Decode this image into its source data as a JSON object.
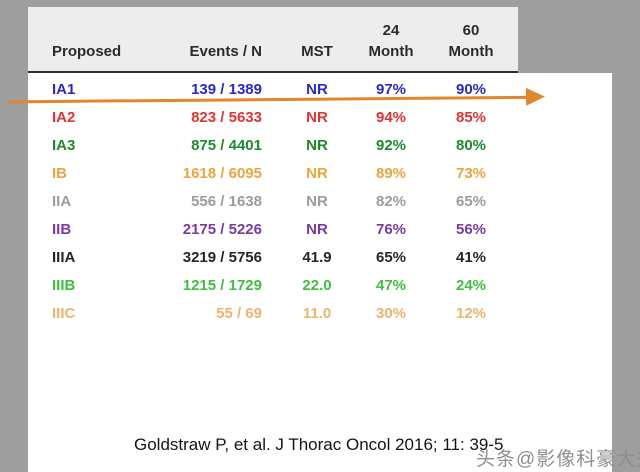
{
  "chart_data": {
    "type": "table",
    "columns": [
      "Proposed",
      "Events / N",
      "MST",
      "24 Month",
      "60 Month"
    ],
    "rows": [
      {
        "stage": "IA1",
        "events_n": "139 / 1389",
        "mst": "NR",
        "m24": "97%",
        "m60": "90%",
        "color": "#2a2ac8"
      },
      {
        "stage": "IA2",
        "events_n": "823 / 5633",
        "mst": "NR",
        "m24": "94%",
        "m60": "85%",
        "color": "#e03434"
      },
      {
        "stage": "IA3",
        "events_n": "875 / 4401",
        "mst": "NR",
        "m24": "92%",
        "m60": "80%",
        "color": "#1e8a2e"
      },
      {
        "stage": "IB",
        "events_n": "1618 / 6095",
        "mst": "NR",
        "m24": "89%",
        "m60": "73%",
        "color": "#eaa53e"
      },
      {
        "stage": "IIA",
        "events_n": "556 / 1638",
        "mst": "NR",
        "m24": "82%",
        "m60": "65%",
        "color": "#9c9c9c"
      },
      {
        "stage": "IIB",
        "events_n": "2175 / 5226",
        "mst": "NR",
        "m24": "76%",
        "m60": "56%",
        "color": "#7a3aa4"
      },
      {
        "stage": "IIIA",
        "events_n": "3219 / 5756",
        "mst": "41.9",
        "m24": "65%",
        "m60": "41%",
        "color": "#262626"
      },
      {
        "stage": "IIIB",
        "events_n": "1215 / 1729",
        "mst": "22.0",
        "m24": "47%",
        "m60": "24%",
        "color": "#3fbf3f"
      },
      {
        "stage": "IIIC",
        "events_n": "55 / 69",
        "mst": "11.0",
        "m24": "30%",
        "m60": "12%",
        "color": "#ecb46e"
      }
    ]
  },
  "header": {
    "proposed": "Proposed",
    "events_n": "Events / N",
    "mst": "MST",
    "m24_line1": "24",
    "m24_line2": "Month",
    "m60_line1": "60",
    "m60_line2": "Month"
  },
  "citation": "Goldstraw P, et al. J Thorac Oncol 2016; 11: 39-5",
  "watermark": "头条@影像科豪大夫",
  "arrow": {
    "color": "#e2862e"
  },
  "colors": {
    "page_bg": "#9e9e9e",
    "slide_bg": "#ffffff",
    "header_bg": "#ededed"
  }
}
